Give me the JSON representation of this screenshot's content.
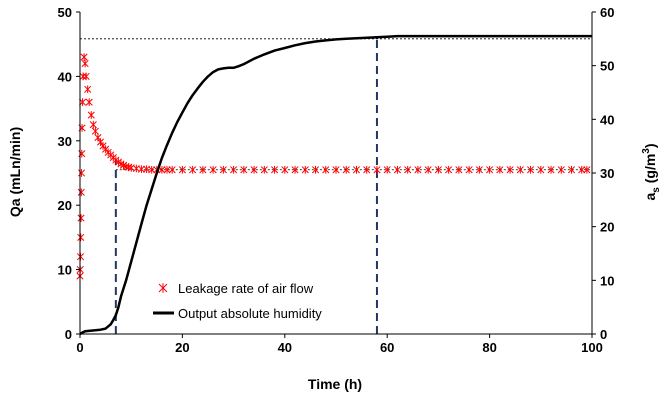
{
  "chart_data": {
    "type": "line",
    "xlabel": "Time (h)",
    "ylabel_left": "Qa (mLn/min)",
    "ylabel_right": {
      "main": "a",
      "sub": "s",
      "rest": " (g/m",
      "sup": "3",
      "end": ")"
    },
    "xlim": [
      0,
      100
    ],
    "ylim_left": [
      0,
      50
    ],
    "ylim_right": [
      0,
      60
    ],
    "x_ticks": [
      "0",
      "20",
      "40",
      "60",
      "80",
      "100"
    ],
    "y_left_ticks": [
      "0",
      "10",
      "20",
      "30",
      "40",
      "50"
    ],
    "y_right_ticks": [
      "0",
      "10",
      "20",
      "30",
      "40",
      "50",
      "60"
    ],
    "legend_position": "bottom-center",
    "series": [
      {
        "name": "Leakage rate of air flow",
        "axis": "left",
        "marker": "asterisk",
        "color": "#ff0000",
        "x": [
          0,
          0.05,
          0.1,
          0.15,
          0.2,
          0.25,
          0.3,
          0.35,
          0.4,
          0.5,
          0.6,
          0.8,
          1.0,
          1.2,
          1.5,
          1.8,
          2.2,
          2.6,
          3.0,
          3.5,
          4.0,
          4.5,
          5.0,
          5.5,
          6.0,
          6.5,
          7.0,
          7.5,
          8.0,
          8.5,
          9.0,
          9.5,
          10.0,
          11.0,
          12.0,
          13.0,
          14.0,
          15.0,
          16.0,
          17.0,
          18.0,
          20.0,
          22.0,
          24.0,
          26.0,
          28.0,
          30.0,
          32.0,
          34.0,
          36.0,
          38.0,
          40.0,
          42.0,
          44.0,
          46.0,
          48.0,
          50.0,
          52.0,
          54.0,
          56.0,
          58.0,
          60.0,
          62.0,
          64.0,
          66.0,
          68.0,
          70.0,
          72.0,
          74.0,
          76.0,
          78.0,
          80.0,
          82.0,
          84.0,
          86.0,
          88.0,
          90.0,
          92.0,
          94.0,
          96.0,
          98.0,
          99.0
        ],
        "y": [
          9,
          10,
          12,
          15,
          18,
          22,
          25,
          28,
          32,
          36,
          40,
          43,
          42,
          40,
          38,
          36,
          34,
          32.5,
          31.5,
          30.5,
          29.8,
          29.2,
          28.7,
          28.2,
          27.8,
          27.4,
          27.0,
          26.7,
          26.4,
          26.2,
          26.0,
          25.9,
          25.8,
          25.7,
          25.6,
          25.6,
          25.5,
          25.5,
          25.5,
          25.5,
          25.5,
          25.5,
          25.5,
          25.5,
          25.5,
          25.5,
          25.5,
          25.5,
          25.5,
          25.5,
          25.5,
          25.5,
          25.5,
          25.5,
          25.5,
          25.5,
          25.5,
          25.5,
          25.5,
          25.5,
          25.5,
          25.5,
          25.5,
          25.5,
          25.5,
          25.5,
          25.5,
          25.5,
          25.5,
          25.5,
          25.5,
          25.5,
          25.5,
          25.5,
          25.5,
          25.5,
          25.5,
          25.5,
          25.5,
          25.5,
          25.5,
          25.5
        ]
      },
      {
        "name": "Output absolute humidity",
        "axis": "right",
        "color": "#000000",
        "x": [
          0,
          0.5,
          1,
          2,
          3,
          4,
          5,
          6,
          6.5,
          7,
          7.5,
          8,
          9,
          10,
          11,
          12,
          13,
          14,
          15,
          16,
          17,
          18,
          19,
          20,
          21,
          22,
          23,
          24,
          25,
          26,
          27,
          28,
          29,
          30,
          31,
          32,
          34,
          36,
          38,
          40,
          42,
          44,
          46,
          48,
          50,
          52,
          54,
          56,
          58,
          60,
          62,
          65,
          70,
          75,
          80,
          85,
          90,
          95,
          100
        ],
        "y": [
          0,
          0.3,
          0.5,
          0.6,
          0.7,
          0.8,
          1.0,
          1.8,
          2.6,
          3.5,
          5.0,
          7.0,
          10.0,
          13.5,
          17.0,
          20.5,
          24.0,
          27.0,
          30.0,
          32.8,
          35.2,
          37.5,
          39.5,
          41.3,
          43.0,
          44.5,
          45.8,
          47.0,
          48.0,
          48.8,
          49.3,
          49.5,
          49.6,
          49.6,
          49.9,
          50.3,
          51.3,
          52.1,
          52.8,
          53.3,
          53.8,
          54.2,
          54.5,
          54.7,
          54.9,
          55.0,
          55.1,
          55.2,
          55.3,
          55.4,
          55.5,
          55.5,
          55.5,
          55.5,
          55.5,
          55.5,
          55.5,
          55.5,
          55.5
        ]
      }
    ],
    "reference_lines": [
      {
        "type": "hline",
        "axis": "right",
        "value": 55,
        "x_from": 0,
        "x_to": 100,
        "style": "dotted"
      },
      {
        "type": "hline",
        "axis": "left",
        "value": 25.5,
        "x_from": 7,
        "x_to": 100,
        "style": "dotted"
      },
      {
        "type": "vline",
        "x": 7,
        "from_axis": "left",
        "value_from": 0,
        "value_to": 27,
        "style": "dashed",
        "color": "#1f3864"
      },
      {
        "type": "vline",
        "x": 58,
        "from_axis": "right",
        "value_from": 0,
        "value_to": 55,
        "style": "dashed",
        "color": "#1f3864"
      }
    ]
  }
}
